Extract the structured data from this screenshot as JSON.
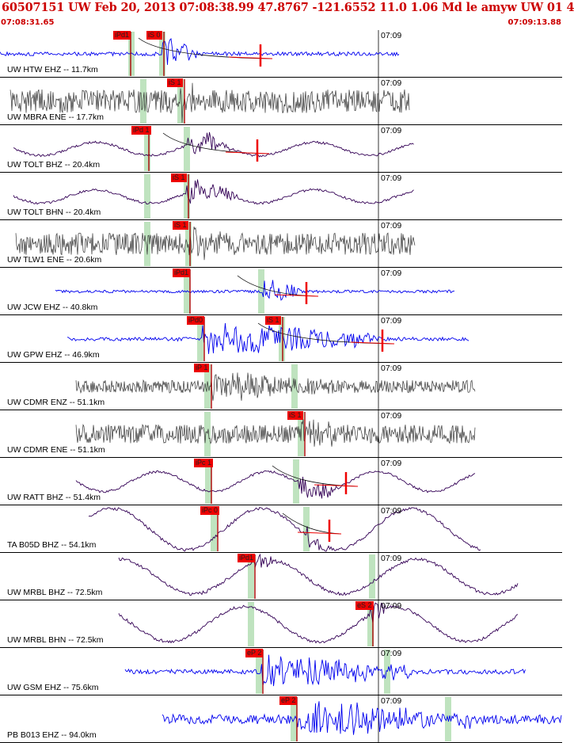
{
  "header": {
    "title": "60507151 UW Feb 20, 2013 07:08:38.99   47.8767 -121.6552 11.0 1.06 Md le amyw UW 01   4",
    "start_time": "07:08:31.65",
    "end_time": "07:09:13.88"
  },
  "colors": {
    "header_text": "#cc0000",
    "pick": "#ee0000",
    "window": "#bfe3bf",
    "blue": "#0000ee",
    "gray": "#333333",
    "purple": "#330055"
  },
  "time_mark_label": "07:09",
  "panels": [
    {
      "label": "UW HTW EHZ -- 11.7km",
      "color": "blue",
      "style": "noise",
      "picks": [
        "iPd1",
        "iS 0"
      ]
    },
    {
      "label": "UW MBRA ENE -- 17.7km",
      "color": "gray",
      "style": "dense",
      "picks": [
        "iS 1"
      ]
    },
    {
      "label": "UW TOLT BHZ -- 20.4km",
      "color": "purple",
      "style": "wave",
      "picks": [
        "iPd 1"
      ]
    },
    {
      "label": "UW TOLT BHN -- 20.4km",
      "color": "purple",
      "style": "wave",
      "picks": [
        "iS 1"
      ]
    },
    {
      "label": "UW TLW1 ENE -- 20.6km",
      "color": "gray",
      "style": "dense",
      "picks": [
        "iS 1"
      ]
    },
    {
      "label": "UW JCW EHZ -- 40.8km",
      "color": "blue",
      "style": "noise",
      "picks": [
        "iPd1"
      ]
    },
    {
      "label": "UW GPW EHZ -- 46.9km",
      "color": "blue",
      "style": "noise",
      "picks": [
        "iPd0",
        "iS 1"
      ]
    },
    {
      "label": "UW CDMR ENZ -- 51.1km",
      "color": "gray",
      "style": "dense",
      "picks": [
        "iP 1"
      ]
    },
    {
      "label": "UW CDMR ENE -- 51.1km",
      "color": "gray",
      "style": "dense",
      "picks": [
        "iS 1"
      ]
    },
    {
      "label": "UW RATT BHZ -- 51.4km",
      "color": "purple",
      "style": "wave",
      "picks": [
        "iPc 1"
      ]
    },
    {
      "label": "TA B05D BHZ -- 54.1km",
      "color": "purple",
      "style": "bigwave",
      "picks": [
        "iPc 0"
      ]
    },
    {
      "label": "UW MRBL BHZ -- 72.5km",
      "color": "purple",
      "style": "bigwave",
      "picks": [
        "iPd1"
      ]
    },
    {
      "label": "UW MRBL BHN -- 72.5km",
      "color": "purple",
      "style": "bigwave",
      "picks": [
        "eS 2"
      ]
    },
    {
      "label": "UW GSM EHZ -- 75.6km",
      "color": "blue",
      "style": "noise",
      "picks": [
        "eP 2"
      ]
    },
    {
      "label": "PB B013 EHZ -- 94.0km",
      "color": "blue",
      "style": "noise",
      "picks": [
        "eP 2"
      ]
    }
  ]
}
